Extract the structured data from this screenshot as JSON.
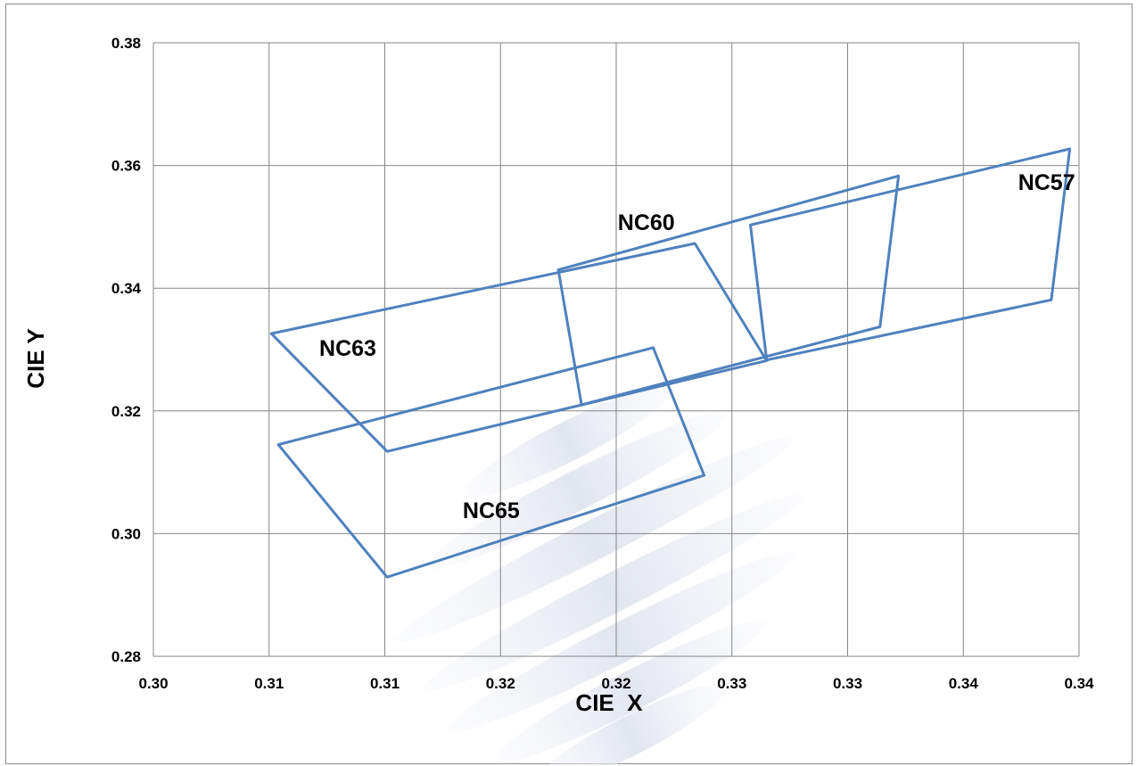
{
  "chart_data": {
    "type": "line",
    "title": "",
    "xlabel": "CIE  X",
    "ylabel": "CIE Y",
    "xlim": [
      0.3,
      0.34
    ],
    "ylim": [
      0.28,
      0.38
    ],
    "x_tick_values": [
      0.3,
      0.305,
      0.31,
      0.315,
      0.32,
      0.325,
      0.33,
      0.335,
      0.34
    ],
    "x_tick_labels": [
      "0.30",
      "0.31",
      "0.31",
      "0.32",
      "0.32",
      "0.33",
      "0.33",
      "0.34",
      "0.34"
    ],
    "y_tick_values": [
      0.28,
      0.3,
      0.32,
      0.34,
      0.36,
      0.38
    ],
    "y_tick_labels": [
      "0.28",
      "0.30",
      "0.32",
      "0.34",
      "0.36",
      "0.38"
    ],
    "grid": true,
    "legend": "none",
    "line_color": "#4f81bd",
    "series": [
      {
        "name": "NC57",
        "label_at": [
          0.3386,
          0.356
        ],
        "points": [
          [
            0.3258,
            0.3503
          ],
          [
            0.3396,
            0.3627
          ],
          [
            0.3388,
            0.3381
          ],
          [
            0.3265,
            0.3283
          ],
          [
            0.3258,
            0.3503
          ]
        ]
      },
      {
        "name": "NC60",
        "label_at": [
          0.3213,
          0.3495
        ],
        "points": [
          [
            0.3175,
            0.343
          ],
          [
            0.3322,
            0.3583
          ],
          [
            0.3314,
            0.3337
          ],
          [
            0.3185,
            0.321
          ],
          [
            0.3175,
            0.343
          ]
        ]
      },
      {
        "name": "NC63",
        "label_at": [
          0.3084,
          0.329
        ],
        "points": [
          [
            0.3051,
            0.3326
          ],
          [
            0.3234,
            0.3473
          ],
          [
            0.3265,
            0.3282
          ],
          [
            0.3101,
            0.3134
          ],
          [
            0.3051,
            0.3326
          ]
        ]
      },
      {
        "name": "NC65",
        "label_at": [
          0.3146,
          0.3025
        ],
        "points": [
          [
            0.3054,
            0.3145
          ],
          [
            0.3216,
            0.3303
          ],
          [
            0.3238,
            0.3095
          ],
          [
            0.3101,
            0.2929
          ],
          [
            0.3054,
            0.3145
          ]
        ]
      }
    ]
  }
}
